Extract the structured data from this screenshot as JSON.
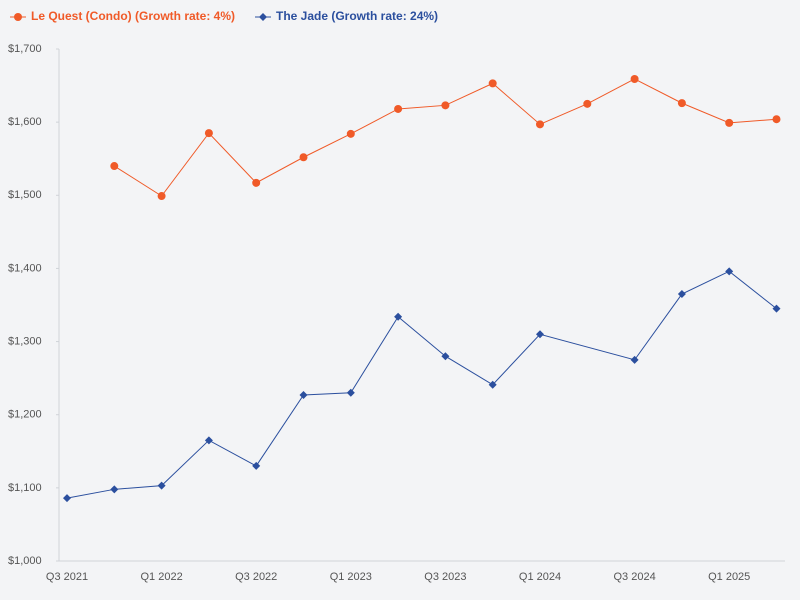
{
  "chart_data": {
    "type": "line",
    "categories": [
      "Q3 2021",
      null,
      "Q1 2022",
      null,
      "Q3 2022",
      null,
      "Q1 2023",
      null,
      "Q3 2023",
      null,
      "Q1 2024",
      null,
      "Q3 2024",
      null,
      "Q1 2025",
      null
    ],
    "series": [
      {
        "name": "Le Quest (Condo) (Growth rate: 4%)",
        "color": "#f05a28",
        "marker": "circle",
        "values": [
          null,
          1540,
          1499,
          1585,
          1517,
          1552,
          1584,
          1618,
          1623,
          1653,
          1597,
          1625,
          1659,
          1626,
          1599,
          1604
        ]
      },
      {
        "name": "The Jade (Growth rate: 24%)",
        "color": "#2b4f9e",
        "marker": "diamond",
        "values": [
          1086,
          1098,
          1103,
          1165,
          1130,
          1227,
          1230,
          1334,
          1280,
          1241,
          1310,
          null,
          1275,
          1365,
          1396,
          1345
        ]
      }
    ],
    "connect_gaps": true,
    "ylim": [
      1000,
      1700
    ],
    "yticks": [
      {
        "value": 1000,
        "label": "$1,000"
      },
      {
        "value": 1100,
        "label": "$1,100"
      },
      {
        "value": 1200,
        "label": "$1,200"
      },
      {
        "value": 1300,
        "label": "$1,300"
      },
      {
        "value": 1400,
        "label": "$1,400"
      },
      {
        "value": 1500,
        "label": "$1,500"
      },
      {
        "value": 1600,
        "label": "$1,600"
      },
      {
        "value": 1700,
        "label": "$1,700"
      }
    ],
    "grid": false,
    "legend": "top-left"
  }
}
